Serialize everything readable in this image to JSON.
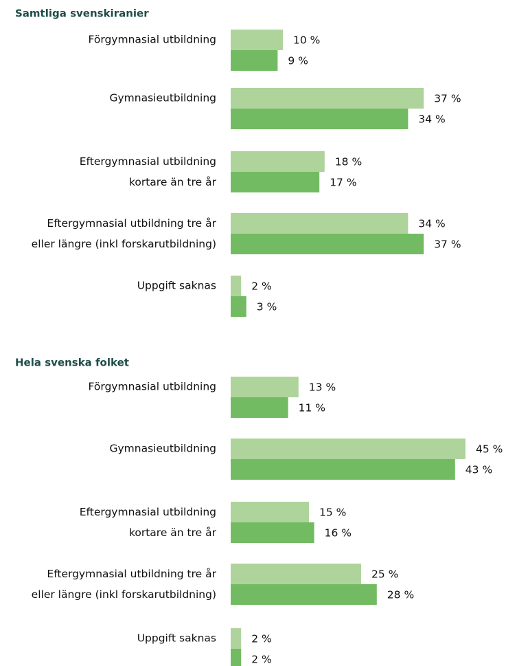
{
  "chart_data": [
    {
      "type": "bar",
      "orientation": "horizontal",
      "title": "Samtliga svenskiranier",
      "categories": [
        "Förgymnasial utbildning",
        "Gymnasieutbildning",
        "Eftergymnasial utbildning\nkortare än tre år",
        "Eftergymnasial utbildning tre år\neller längre (inkl forskarutbildning)",
        "Uppgift saknas"
      ],
      "series": [
        {
          "color": "#aed49c",
          "values": [
            10,
            37,
            18,
            34,
            2
          ],
          "value_labels": [
            "10 %",
            "37 %",
            "18 %",
            "34 %",
            "2 %"
          ]
        },
        {
          "color": "#72bb62",
          "values": [
            9,
            34,
            17,
            37,
            3
          ],
          "value_labels": [
            "9 %",
            "34 %",
            "17 %",
            "37 %",
            "3 %"
          ]
        }
      ]
    },
    {
      "type": "bar",
      "orientation": "horizontal",
      "title": "Hela svenska folket",
      "categories": [
        "Förgymnasial utbildning",
        "Gymnasieutbildning",
        "Eftergymnasial utbildning\nkortare än tre år",
        "Eftergymnasial utbildning tre år\neller längre (inkl forskarutbildning)",
        "Uppgift saknas"
      ],
      "series": [
        {
          "color": "#aed49c",
          "values": [
            13,
            45,
            15,
            25,
            2
          ],
          "value_labels": [
            "13 %",
            "45 %",
            "15 %",
            "25 %",
            "2 %"
          ]
        },
        {
          "color": "#72bb62",
          "values": [
            11,
            43,
            16,
            28,
            2
          ],
          "value_labels": [
            "11 %",
            "43 %",
            "16 %",
            "28 %",
            "2 %"
          ]
        }
      ]
    }
  ]
}
